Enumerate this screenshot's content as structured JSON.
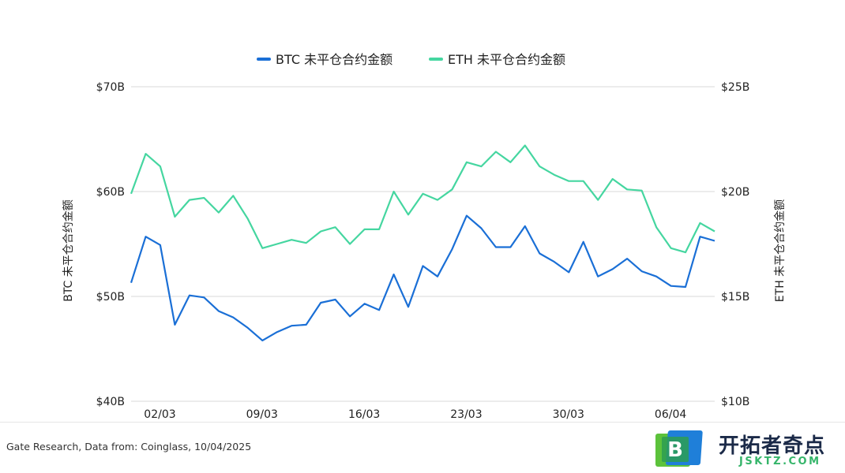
{
  "chart_data": {
    "type": "line",
    "categories": [
      "01/03",
      "02/03",
      "03/03",
      "04/03",
      "05/03",
      "06/03",
      "07/03",
      "08/03",
      "09/03",
      "10/03",
      "11/03",
      "12/03",
      "13/03",
      "14/03",
      "15/03",
      "16/03",
      "17/03",
      "18/03",
      "19/03",
      "20/03",
      "21/03",
      "22/03",
      "23/03",
      "24/03",
      "25/03",
      "26/03",
      "27/03",
      "28/03",
      "29/03",
      "30/03",
      "31/03",
      "01/04",
      "02/04",
      "03/04",
      "04/04",
      "05/04",
      "06/04",
      "07/04",
      "08/04",
      "09/04",
      "10/04"
    ],
    "x_tick_labels": [
      "02/03",
      "09/03",
      "16/03",
      "23/03",
      "30/03",
      "06/04"
    ],
    "series": [
      {
        "name": "BTC 未平仓合约金额",
        "axis": "left",
        "color": "#1a6fd6",
        "values": [
          51.3,
          55.7,
          54.9,
          47.3,
          50.1,
          49.9,
          48.6,
          48.0,
          47.0,
          45.8,
          46.6,
          47.2,
          47.3,
          49.4,
          49.7,
          48.1,
          49.3,
          48.7,
          52.1,
          49.0,
          52.9,
          51.9,
          54.5,
          57.7,
          56.5,
          54.7,
          54.7,
          56.7,
          54.1,
          53.3,
          52.3,
          55.2,
          51.9,
          52.6,
          53.6,
          52.4,
          51.9,
          51.0,
          50.9,
          55.7,
          55.3
        ]
      },
      {
        "name": "ETH 未平仓合约金额",
        "axis": "right",
        "color": "#45d6a0",
        "values": [
          19.9,
          21.8,
          21.2,
          18.8,
          19.6,
          19.7,
          19.0,
          19.8,
          18.7,
          17.3,
          17.5,
          17.7,
          17.55,
          18.1,
          18.3,
          17.5,
          18.2,
          18.2,
          20.0,
          18.9,
          19.9,
          19.6,
          20.1,
          21.4,
          21.2,
          21.9,
          21.4,
          22.2,
          21.2,
          20.8,
          20.5,
          20.5,
          19.6,
          20.6,
          20.1,
          20.05,
          18.3,
          17.3,
          17.1,
          18.5,
          18.1
        ]
      }
    ],
    "y_left": {
      "label": "BTC 未平仓合约金额",
      "ylim": [
        40,
        70
      ],
      "ticks": [
        40,
        50,
        60,
        70
      ],
      "tick_labels": [
        "$40B",
        "$50B",
        "$60B",
        "$70B"
      ]
    },
    "y_right": {
      "label": "ETH 未平仓合约金额",
      "ylim": [
        10,
        25
      ],
      "ticks": [
        10,
        15,
        20,
        25
      ],
      "tick_labels": [
        "$10B",
        "$15B",
        "$20B",
        "$25B"
      ]
    },
    "legend_position": "top-center",
    "grid": true
  },
  "footer": {
    "source": "Gate Research, Data from: Coinglass, 10/04/2025"
  },
  "brand": {
    "name": "开拓者奇点",
    "domain": "JSKTZ.COM",
    "logo_letter": "B",
    "colors": {
      "green": "#5cc23b",
      "blue": "#1f7fd9",
      "dark": "#1b2a48"
    }
  }
}
